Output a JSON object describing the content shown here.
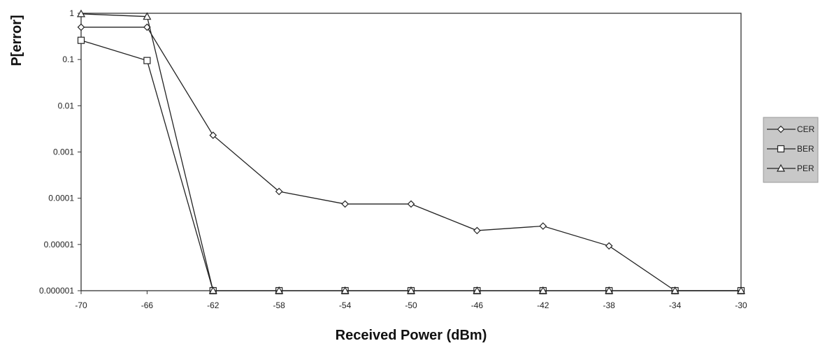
{
  "chart_data": {
    "type": "line",
    "xlabel": "Received Power (dBm)",
    "ylabel": "P[error]",
    "x": [
      -70,
      -66,
      -62,
      -58,
      -54,
      -50,
      -46,
      -42,
      -38,
      -34,
      -30
    ],
    "x_tick_labels": [
      "-70",
      "-66",
      "-62",
      "-58",
      "-54",
      "-50",
      "-46",
      "-42",
      "-38",
      "-34",
      "-30"
    ],
    "xlim": [
      -70,
      -30
    ],
    "ylim": [
      1e-06,
      1
    ],
    "y_scale": "log",
    "y_tick_values": [
      1,
      0.1,
      0.01,
      0.001,
      0.0001,
      1e-05,
      1e-06
    ],
    "y_tick_labels": [
      "1",
      "0.1",
      "0.01",
      "0.001",
      "0.0001",
      "0.00001",
      "0.000001"
    ],
    "grid": false,
    "legend_position": "right",
    "series": [
      {
        "name": "CER",
        "marker": "diamond",
        "x": [
          -70,
          -66,
          -62,
          -58,
          -54,
          -50,
          -46,
          -42,
          -38,
          -34,
          -30
        ],
        "values": [
          0.5,
          0.5,
          0.0023,
          0.00014,
          7.5e-05,
          7.5e-05,
          2e-05,
          2.5e-05,
          9.3e-06,
          1e-06,
          1e-06
        ]
      },
      {
        "name": "BER",
        "marker": "square",
        "x": [
          -70,
          -66,
          -62,
          -58,
          -54,
          -50,
          -46,
          -42,
          -38,
          -34,
          -30
        ],
        "values": [
          0.26,
          0.095,
          1e-06,
          1e-06,
          1e-06,
          1e-06,
          1e-06,
          1e-06,
          1e-06,
          1e-06,
          1e-06
        ]
      },
      {
        "name": "PER",
        "marker": "triangle",
        "x": [
          -70,
          -66,
          -62,
          -58,
          -54,
          -50,
          -46,
          -42,
          -38,
          -34,
          -30
        ],
        "values": [
          0.97,
          0.85,
          1e-06,
          1e-06,
          1e-06,
          1e-06,
          1e-06,
          1e-06,
          1e-06,
          1e-06,
          1e-06
        ]
      }
    ]
  }
}
